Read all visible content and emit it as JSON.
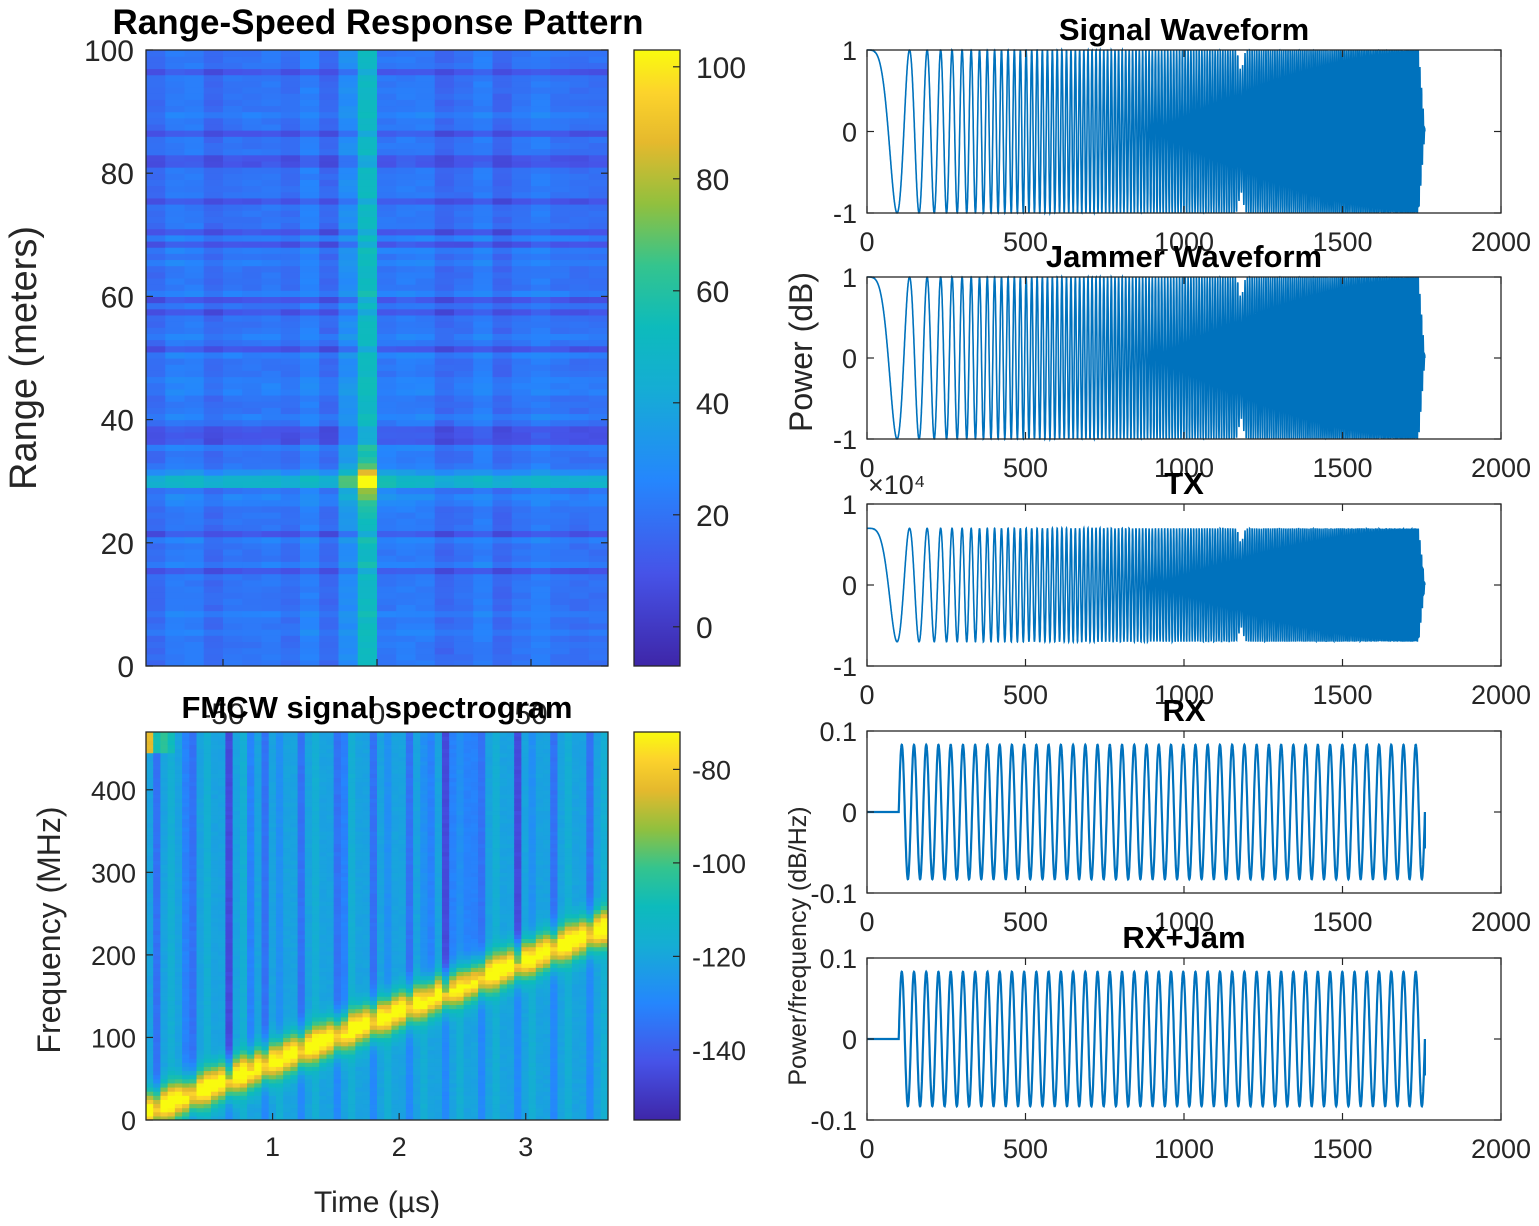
{
  "colors": {
    "line": "#0072BD",
    "axis": "#262626"
  },
  "chart_data": [
    {
      "id": "range-speed",
      "type": "heatmap",
      "title": "Range-Speed Response Pattern",
      "xlabel": "",
      "ylabel": "Range (meters)",
      "xticks": [
        "-50",
        "0",
        "50"
      ],
      "yticks": [
        "0",
        "20",
        "40",
        "60",
        "80",
        "100"
      ],
      "xlim": [
        -75,
        75
      ],
      "ylim": [
        0,
        100
      ],
      "peak": {
        "x": -4,
        "y": 30,
        "value": 95
      },
      "colorbar": {
        "ticks": [
          "0",
          "20",
          "40",
          "60",
          "80",
          "100"
        ],
        "range": [
          -7,
          103
        ]
      },
      "colormap": "parula"
    },
    {
      "id": "spectrogram",
      "type": "heatmap",
      "title": "FMCW signal spectrogram",
      "xlabel": "Time (µs)",
      "ylabel": "Frequency (MHz)",
      "xticks": [
        "1",
        "2",
        "3"
      ],
      "yticks": [
        "0",
        "100",
        "200",
        "300",
        "400"
      ],
      "xlim": [
        0,
        3.65
      ],
      "ylim": [
        0,
        470
      ],
      "chirp": {
        "start_freq": 10,
        "end_freq": 235,
        "duration": 3.65
      },
      "colorbar": {
        "ticks": [
          "-80",
          "-100",
          "-120",
          "-140"
        ],
        "range": [
          -155,
          -72
        ]
      },
      "colormap": "parula"
    },
    {
      "id": "signal-waveform",
      "type": "line",
      "title": "Signal Waveform",
      "xlabel": "",
      "ylabel": "",
      "xlim": [
        0,
        2000
      ],
      "ylim": [
        -1,
        1
      ],
      "xticks": [
        "0",
        "500",
        "1000",
        "1500",
        "2000"
      ],
      "yticks": [
        "1",
        "0",
        "-1"
      ],
      "amplitude": 1,
      "length": 1760
    },
    {
      "id": "jammer-waveform",
      "type": "line",
      "title": "Jammer Waveform",
      "xlabel": "",
      "ylabel": "Power (dB)",
      "xlim": [
        0,
        2000
      ],
      "ylim": [
        -1,
        1
      ],
      "xticks": [
        "0",
        "500",
        "1000",
        "1500",
        "2000"
      ],
      "yticks": [
        "1",
        "0",
        "-1"
      ],
      "amplitude": 1,
      "length": 1760
    },
    {
      "id": "tx",
      "type": "line",
      "title": "TX",
      "xlabel": "",
      "ylabel": "",
      "exponent_label": "×10⁴",
      "xlim": [
        0,
        2000
      ],
      "ylim": [
        -1,
        1
      ],
      "xticks": [
        "0",
        "500",
        "1000",
        "1500",
        "2000"
      ],
      "yticks": [
        "1",
        "0",
        "-1"
      ],
      "amplitude": 0.7,
      "length": 1760
    },
    {
      "id": "rx",
      "type": "line",
      "title": "RX",
      "xlabel": "",
      "ylabel": "",
      "xlim": [
        0,
        2000
      ],
      "ylim": [
        -0.1,
        0.1
      ],
      "xticks": [
        "0",
        "500",
        "1000",
        "1500",
        "2000"
      ],
      "yticks": [
        "0.1",
        "0",
        "-0.1"
      ],
      "amplitude": 0.083,
      "start": 100,
      "end": 1760,
      "cycles": 43
    },
    {
      "id": "rx-jam",
      "type": "line",
      "title": "RX+Jam",
      "xlabel": "",
      "ylabel": "Power/frequency (dB/Hz)",
      "xlim": [
        0,
        2000
      ],
      "ylim": [
        -0.1,
        0.1
      ],
      "xticks": [
        "0",
        "500",
        "1000",
        "1500",
        "2000"
      ],
      "yticks": [
        "0.1",
        "0",
        "-0.1"
      ],
      "amplitude": 0.083,
      "start": 100,
      "end": 1760,
      "cycles": 43
    }
  ]
}
